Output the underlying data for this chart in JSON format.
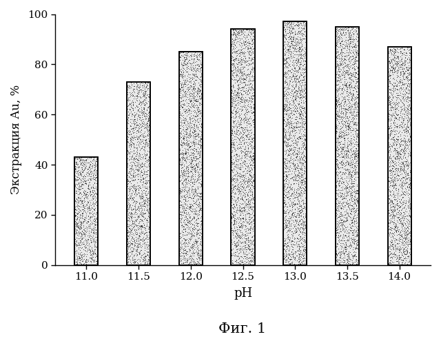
{
  "categories": [
    "11.0",
    "11.5",
    "12.0",
    "12.5",
    "13.0",
    "13.5",
    "14.0"
  ],
  "values": [
    43,
    73,
    85,
    94,
    97,
    95,
    87
  ],
  "xlabel": "pH",
  "ylabel": "Экстракция Au, %",
  "caption": "Фиг. 1",
  "ylim": [
    0,
    100
  ],
  "yticks": [
    0,
    20,
    40,
    60,
    80,
    100
  ],
  "bar_color": "#e8e8e8",
  "bar_edgecolor": "#000000",
  "background_color": "#ffffff",
  "bar_width": 0.45,
  "label_fontsize": 12,
  "tick_fontsize": 11,
  "caption_fontsize": 15,
  "noise_density": 0.18,
  "noise_color": 0.3
}
